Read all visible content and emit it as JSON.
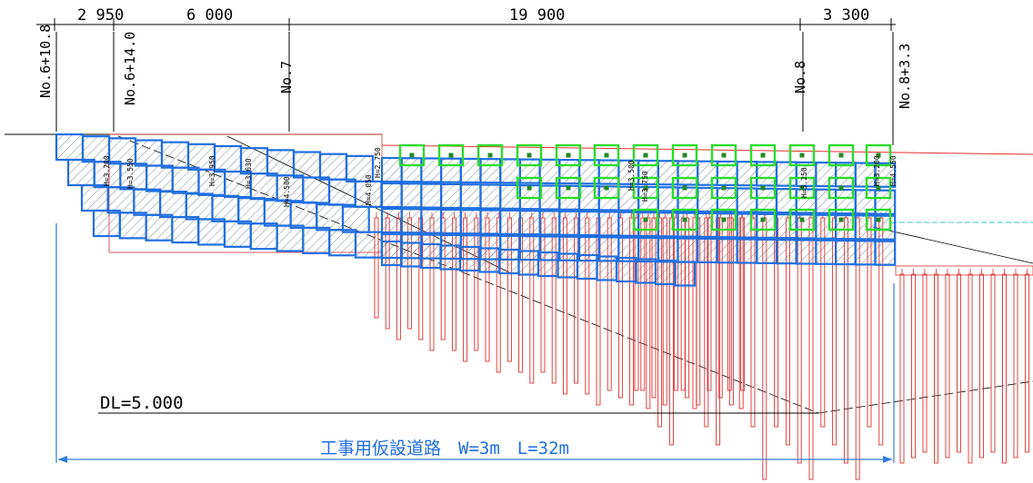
{
  "dimensions": [
    "2 950",
    "6 000",
    "19 900",
    "3 300"
  ],
  "stations": [
    "No.6+10.8",
    "No.6+14.0",
    "No.7",
    "No.8",
    "No.8+3.3"
  ],
  "pile_height_labels": [
    "H=3.200",
    "H=3.550",
    "H=3.950",
    "H=3.630",
    "H=4.500",
    "H=4.050",
    "H=2.750",
    "H=3.500",
    "H=3.750",
    "H=3.250",
    "H=3.200",
    "H=4.550"
  ],
  "datum_label": "DL=5.000",
  "road_label": "工事用仮設道路　W=3m　L=32m",
  "colors": {
    "block_outline": "#1f6fe0",
    "block_hatch": "#5a6f8a",
    "pile": "#e0302f",
    "marker": "#2bdc2b",
    "dimension_arrow": "#2f7de0",
    "road_text": "#1f6fe0"
  }
}
